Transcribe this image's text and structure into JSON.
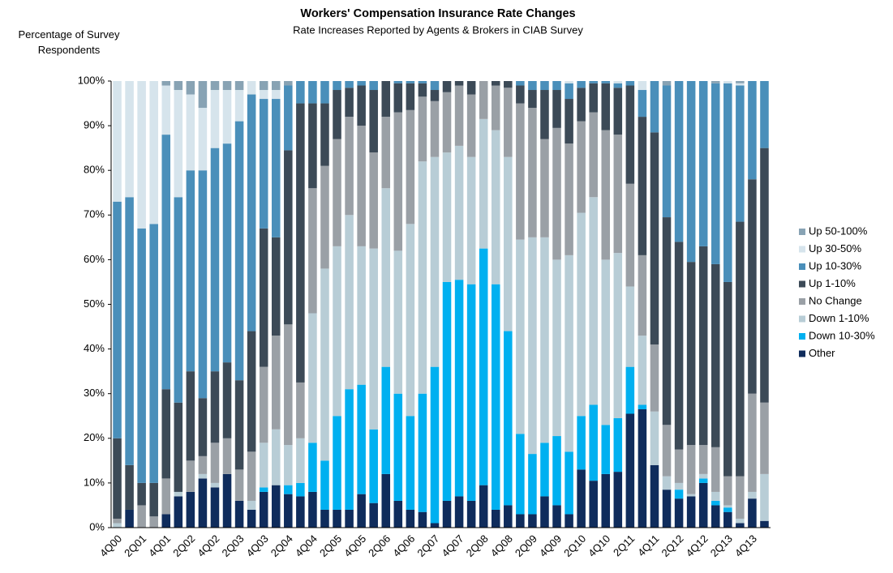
{
  "chart_data": {
    "type": "stacked_bar",
    "title": "Workers' Compensation Insurance Rate Changes",
    "subtitle": "Rate Increases Reported by Agents & Brokers in CIAB Survey",
    "y_label": "Percentage of Survey Respondents",
    "categories": [
      "4Q00",
      null,
      "2Q01",
      null,
      "4Q01",
      null,
      "2Q02",
      null,
      "4Q02",
      null,
      "2Q03",
      null,
      "4Q03",
      null,
      "2Q04",
      null,
      "4Q04",
      null,
      "2Q05",
      null,
      "4Q05",
      null,
      "2Q06",
      null,
      "4Q06",
      null,
      "2Q07",
      null,
      "4Q07",
      null,
      "2Q08",
      null,
      "4Q08",
      null,
      "2Q09",
      null,
      "4Q09",
      null,
      "2Q10",
      null,
      "4Q10",
      null,
      "2Q11",
      null,
      "4Q11",
      null,
      "2Q12",
      null,
      "4Q12",
      null,
      "2Q13",
      null,
      "4Q13",
      null
    ],
    "series": [
      {
        "name": "Other",
        "color": "#0f2c5c",
        "values": [
          0,
          4,
          0,
          0,
          3,
          7,
          8,
          11,
          9,
          12,
          6,
          4,
          8,
          9.5,
          7.5,
          7,
          8,
          4,
          4,
          4,
          7.5,
          5.5,
          12,
          6,
          4,
          3.5,
          1,
          6,
          7,
          6,
          9.5,
          4,
          5,
          3,
          3,
          7,
          5,
          3,
          13,
          10.5,
          12,
          12.5,
          25.5,
          26.5,
          14,
          8.5,
          6.5,
          7,
          10,
          5,
          3.5,
          1,
          6.5,
          1.5
        ]
      },
      {
        "name": "Down 10-30%",
        "color": "#00b0f0",
        "values": [
          0,
          0,
          0,
          0,
          0,
          0,
          0,
          0,
          0,
          0,
          0,
          0,
          1,
          0,
          2,
          3,
          11,
          11,
          21,
          27,
          24.5,
          16.5,
          24,
          24,
          21,
          26.5,
          35,
          49,
          48.5,
          48.5,
          53,
          50.5,
          39,
          18,
          13.5,
          12,
          15.5,
          14,
          12,
          17,
          11,
          12,
          10.5,
          1,
          0,
          0,
          2,
          0,
          1,
          1,
          1,
          0,
          0,
          0
        ]
      },
      {
        "name": "Down 1-10%",
        "color": "#b8cdd6",
        "values": [
          1,
          0,
          0,
          0,
          0,
          1,
          0,
          1,
          1,
          0,
          0,
          2,
          10,
          12.5,
          9,
          10,
          29,
          43,
          38,
          39,
          31,
          40.5,
          40,
          32,
          43,
          52,
          47,
          29,
          30,
          28.5,
          29,
          34.5,
          39,
          43.5,
          48.5,
          46,
          39.5,
          44,
          45.5,
          46.5,
          37,
          37,
          18,
          15.5,
          12,
          3,
          1.5,
          0.5,
          1,
          2,
          0.5,
          1,
          1.5,
          10.5
        ]
      },
      {
        "name": "No Change",
        "color": "#9aa0a6",
        "values": [
          1,
          0,
          5,
          2.5,
          8,
          0,
          7,
          4,
          9,
          8,
          7,
          11,
          17,
          21,
          27,
          12.5,
          28,
          23,
          24,
          22,
          27,
          21.5,
          16,
          31,
          25.5,
          14.5,
          12.5,
          13.5,
          13.5,
          14,
          8.5,
          10,
          15.5,
          30.5,
          29,
          22,
          29.5,
          25,
          20.5,
          19,
          29,
          26.5,
          23,
          18,
          15,
          11.5,
          7.5,
          11,
          6.5,
          10,
          6.5,
          9.5,
          22,
          16
        ]
      },
      {
        "name": "Up 1-10%",
        "color": "#3c4a57",
        "values": [
          18,
          10,
          5,
          7.5,
          20,
          20,
          20,
          13,
          16,
          17,
          20,
          27,
          31,
          22,
          39,
          62.5,
          19,
          14,
          11,
          6.5,
          9,
          14,
          8,
          6.5,
          6,
          3,
          2.5,
          2.5,
          1,
          3,
          0,
          1,
          1.5,
          4,
          4,
          11,
          8.5,
          10,
          7.5,
          6.5,
          10.5,
          10.5,
          22,
          31,
          47.5,
          46.5,
          46.5,
          41,
          44.5,
          41,
          43.5,
          57,
          48,
          57
        ]
      },
      {
        "name": "Up 10-30%",
        "color": "#4a8fba",
        "values": [
          53,
          60,
          57,
          58,
          57,
          46,
          45,
          51,
          50,
          49,
          58,
          53,
          29,
          31,
          14.5,
          5,
          5,
          5,
          2,
          1.5,
          1,
          2,
          0,
          0.5,
          0.5,
          0.5,
          2,
          0,
          0,
          0,
          0,
          0,
          0,
          1,
          2,
          2,
          2,
          3.5,
          1.5,
          0.5,
          0.5,
          1,
          1,
          6,
          11.5,
          29.5,
          36,
          40.5,
          37,
          40.5,
          44.5,
          30.5,
          22,
          15
        ]
      },
      {
        "name": "Up 30-50%",
        "color": "#d6e4ec",
        "values": [
          27,
          26,
          33,
          32,
          11,
          24,
          17,
          14,
          13,
          12,
          7,
          3,
          2,
          2,
          0,
          0,
          0,
          0,
          0,
          0,
          0,
          0,
          0,
          0,
          0,
          0,
          0,
          0,
          0,
          0,
          0,
          0,
          0,
          0,
          0,
          0,
          0,
          0.5,
          0,
          0,
          0,
          0.5,
          0,
          2,
          0,
          0,
          0,
          0,
          0,
          0,
          0.5,
          0.5,
          0,
          0
        ]
      },
      {
        "name": "Up 50-100%",
        "color": "#88a3b4",
        "values": [
          0,
          0,
          0,
          0,
          1,
          2,
          3,
          6,
          2,
          2,
          2,
          0,
          2,
          2,
          1,
          0,
          0,
          0,
          0,
          0,
          0,
          0,
          0,
          0,
          0,
          0,
          0,
          0,
          0,
          0,
          0,
          0,
          0,
          0,
          0,
          0,
          0,
          0,
          0,
          0,
          0,
          0,
          0,
          0,
          0,
          1,
          0,
          0,
          0,
          0.5,
          0,
          0.5,
          0,
          0
        ]
      }
    ],
    "ylim": [
      0,
      100
    ],
    "yticks": [
      {
        "value": 0,
        "label": "0%"
      },
      {
        "value": 10,
        "label": "10%"
      },
      {
        "value": 20,
        "label": "20%"
      },
      {
        "value": 30,
        "label": "30%"
      },
      {
        "value": 40,
        "label": "40%"
      },
      {
        "value": 50,
        "label": "50%"
      },
      {
        "value": 60,
        "label": "60%"
      },
      {
        "value": 70,
        "label": "70%"
      },
      {
        "value": 80,
        "label": "80%"
      },
      {
        "value": 90,
        "label": "90%"
      },
      {
        "value": 100,
        "label": "100%"
      }
    ],
    "grid": false,
    "legend": "right"
  }
}
